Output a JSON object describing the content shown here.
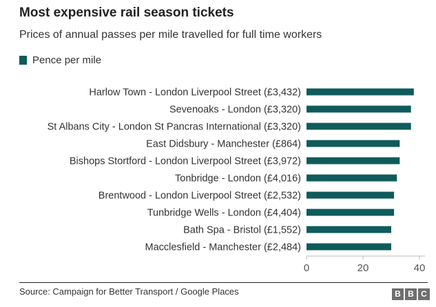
{
  "header": {
    "title": "Most expensive rail season tickets",
    "subtitle": "Prices of annual passes per mile travelled for full time workers"
  },
  "legend": {
    "label": "Pence per mile",
    "color": "#0f5b5b"
  },
  "footer": {
    "source": "Source: Campaign for Better Transport / Google Places",
    "logo_letters": [
      "B",
      "B",
      "C"
    ]
  },
  "chart_data": {
    "type": "bar",
    "orientation": "horizontal",
    "categories": [
      "Harlow Town - London Liverpool Street (£3,432)",
      "Sevenoaks - London (£3,320)",
      "St Albans City - London St Pancras International (£3,320)",
      "East Didsbury - Manchester (£864)",
      "Bishops Stortford - London Liverpool Street (£3,972)",
      "Tonbridge - London (£4,016)",
      "Brentwood - London Liverpool Street (£2,532)",
      "Tunbridge Wells - London (£4,404)",
      "Bath Spa - Bristol (£1,552)",
      "Macclesfield - Manchester (£2,484)"
    ],
    "series": [
      {
        "name": "Pence per mile",
        "values": [
          38,
          37,
          37,
          33,
          33,
          32,
          31,
          31,
          30,
          30
        ]
      }
    ],
    "xticks": [
      "0",
      "20",
      "40"
    ],
    "xlim": [
      0,
      40
    ],
    "grid": false,
    "color": "#0f5b5b",
    "axis_color": "#bbbbbb",
    "tick_label_color": "#555555",
    "category_label_color": "#333333",
    "legend_position": "top-left"
  }
}
